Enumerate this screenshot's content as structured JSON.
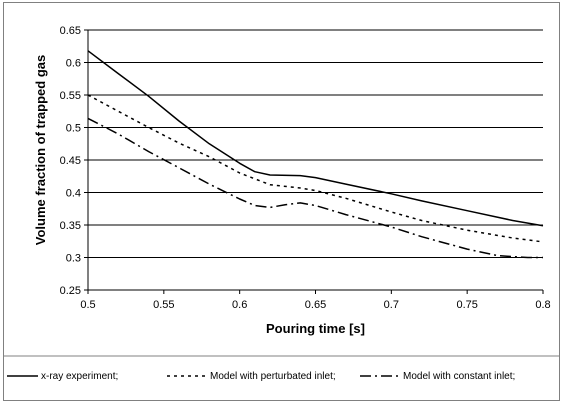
{
  "chart_data": {
    "type": "line",
    "title": "",
    "xlabel": "Pouring time [s]",
    "ylabel": "Volume fraction of trapped gas",
    "xlim": [
      0.5,
      0.8
    ],
    "ylim": [
      0.25,
      0.65
    ],
    "xticks": [
      0.5,
      0.55,
      0.6,
      0.65,
      0.7,
      0.75,
      0.8
    ],
    "xtick_labels": [
      "0.5",
      "0.55",
      "0.6",
      "0.65",
      "0.7",
      "0.75",
      "0.8"
    ],
    "yticks": [
      0.25,
      0.3,
      0.35,
      0.4,
      0.45,
      0.5,
      0.55,
      0.6,
      0.65
    ],
    "ytick_labels": [
      "0.25",
      "0.3",
      "0.35",
      "0.4",
      "0.45",
      "0.5",
      "0.55",
      "0.6",
      "0.65"
    ],
    "grid": "horizontal",
    "legend_position": "bottom",
    "series": [
      {
        "name": "x-ray experiment;",
        "style": "solid",
        "x": [
          0.5,
          0.52,
          0.54,
          0.56,
          0.58,
          0.6,
          0.61,
          0.62,
          0.64,
          0.65,
          0.67,
          0.7,
          0.72,
          0.75,
          0.78,
          0.8
        ],
        "y": [
          0.618,
          0.583,
          0.548,
          0.51,
          0.475,
          0.445,
          0.432,
          0.427,
          0.426,
          0.423,
          0.413,
          0.398,
          0.387,
          0.372,
          0.357,
          0.349
        ]
      },
      {
        "name": "Model with perturbated inlet;",
        "style": "dotted",
        "x": [
          0.5,
          0.52,
          0.54,
          0.56,
          0.58,
          0.6,
          0.62,
          0.64,
          0.65,
          0.67,
          0.7,
          0.72,
          0.75,
          0.78,
          0.8
        ],
        "y": [
          0.55,
          0.525,
          0.5,
          0.476,
          0.455,
          0.43,
          0.412,
          0.407,
          0.403,
          0.391,
          0.37,
          0.357,
          0.342,
          0.33,
          0.324
        ]
      },
      {
        "name": "Model with constant inlet;",
        "style": "dashdot",
        "x": [
          0.5,
          0.52,
          0.54,
          0.56,
          0.58,
          0.6,
          0.61,
          0.62,
          0.63,
          0.64,
          0.65,
          0.67,
          0.7,
          0.72,
          0.75,
          0.77,
          0.79,
          0.8
        ],
        "y": [
          0.514,
          0.49,
          0.463,
          0.438,
          0.413,
          0.39,
          0.38,
          0.377,
          0.381,
          0.384,
          0.38,
          0.366,
          0.347,
          0.332,
          0.313,
          0.303,
          0.3,
          0.3
        ]
      }
    ]
  }
}
